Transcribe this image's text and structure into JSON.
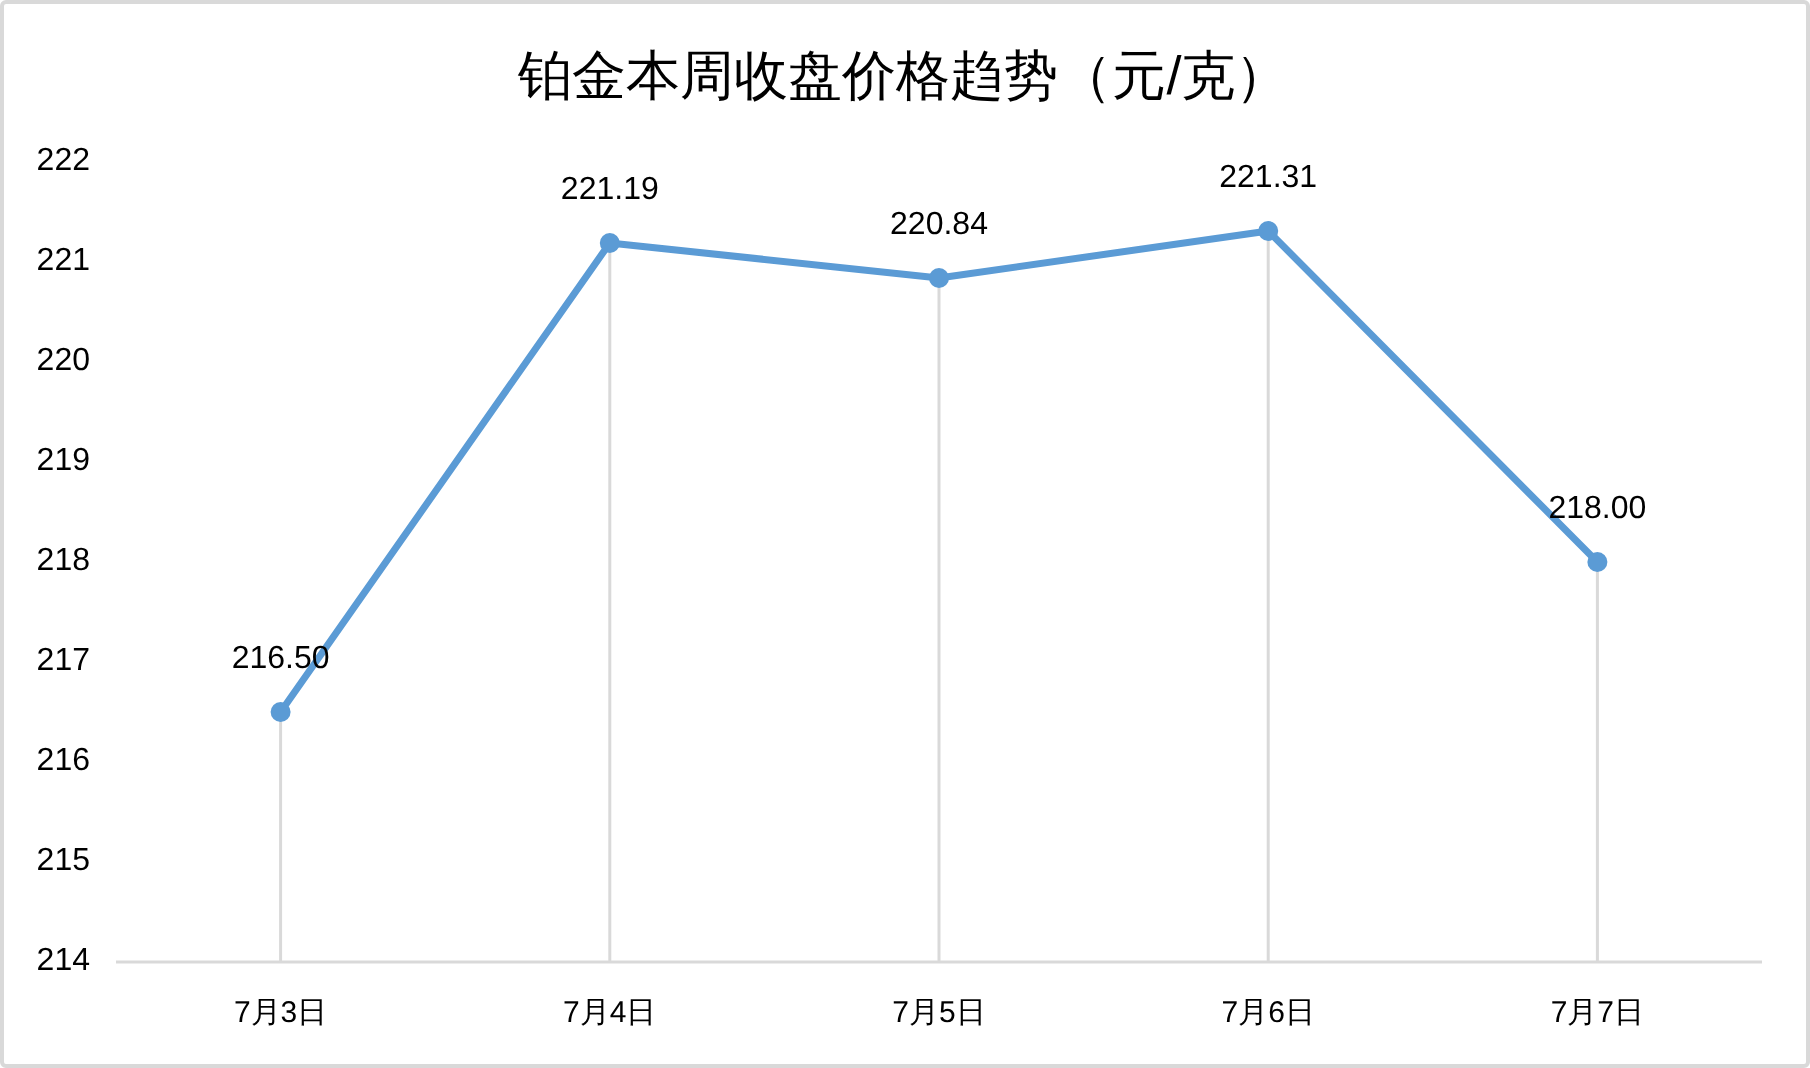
{
  "chart_data": {
    "type": "line",
    "title": "铂金本周收盘价格趋势（元/克）",
    "categories": [
      "7月3日",
      "7月4日",
      "7月5日",
      "7月6日",
      "7月7日"
    ],
    "series": [
      {
        "color": "#5b9bd5",
        "values": [
          216.5,
          221.19,
          220.84,
          221.31,
          218.0
        ],
        "value_labels": [
          "216.50",
          "221.19",
          "220.84",
          "221.31",
          "218.00"
        ]
      }
    ],
    "ylim": [
      214,
      222
    ],
    "yticks": [
      214,
      215,
      216,
      217,
      218,
      219,
      220,
      221,
      222
    ],
    "grid": "x",
    "marker": "circle",
    "line_style": "solid"
  }
}
